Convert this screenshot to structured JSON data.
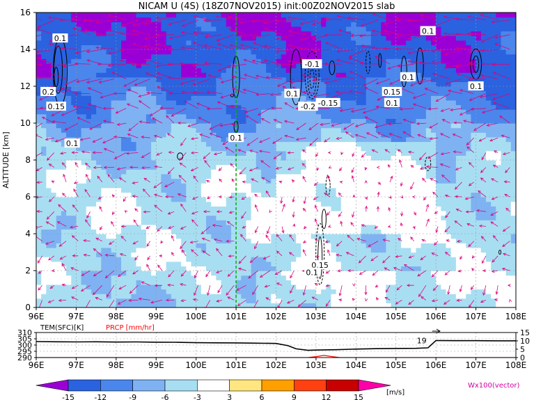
{
  "chart_data": [
    {
      "type": "heatmap",
      "title": "NICAM U (4S) (18Z07NOV2015) init:00Z02NOV2015 slab",
      "ylabel": "ALTITUDE [km]",
      "xlim": [
        96,
        108
      ],
      "ylim": [
        0,
        16
      ],
      "x_ticks": [
        "96E",
        "97E",
        "98E",
        "99E",
        "100E",
        "101E",
        "102E",
        "103E",
        "104E",
        "105E",
        "106E",
        "107E",
        "108E"
      ],
      "y_ticks": [
        "0",
        "2",
        "4",
        "6",
        "8",
        "10",
        "12",
        "14",
        "16"
      ],
      "grid": true,
      "marker_line_x": 101,
      "contour_labels": [
        {
          "text": "0.1",
          "x": 96.6,
          "y": 14.6
        },
        {
          "text": "0.2",
          "x": 96.3,
          "y": 11.7
        },
        {
          "text": "0.15",
          "x": 96.5,
          "y": 10.9
        },
        {
          "text": "0.1",
          "x": 96.9,
          "y": 8.9
        },
        {
          "text": "0.1",
          "x": 101.0,
          "y": 9.2
        },
        {
          "text": "-0.1",
          "x": 102.9,
          "y": 13.2
        },
        {
          "text": "0.1",
          "x": 102.4,
          "y": 11.6
        },
        {
          "text": "-0.2",
          "x": 102.8,
          "y": 10.9
        },
        {
          "text": "-0.15",
          "x": 103.3,
          "y": 11.1
        },
        {
          "text": "0.15",
          "x": 104.9,
          "y": 11.7
        },
        {
          "text": "0.1",
          "x": 104.9,
          "y": 11.1
        },
        {
          "text": "0.1",
          "x": 105.3,
          "y": 12.5
        },
        {
          "text": "0.1",
          "x": 105.8,
          "y": 15.0
        },
        {
          "text": "0.1",
          "x": 107.0,
          "y": 12.0
        },
        {
          "text": "0.15",
          "x": 103.1,
          "y": 2.3
        },
        {
          "text": "0.1",
          "x": 102.9,
          "y": 1.9
        }
      ]
    },
    {
      "type": "line",
      "xlim": [
        96,
        108
      ],
      "x_ticks": [
        "96E",
        "97E",
        "98E",
        "99E",
        "100E",
        "101E",
        "102E",
        "103E",
        "104E",
        "105E",
        "106E",
        "107E",
        "108E"
      ],
      "left_axis": {
        "label": "TEM(SFC)[K]",
        "ticks": [
          "290",
          "295",
          "300",
          "305",
          "310"
        ],
        "range": [
          290,
          310
        ]
      },
      "right_axis": {
        "label": "PRCP [mm/hr]",
        "ticks": [
          "0",
          "5",
          "10",
          "15"
        ],
        "range": [
          0,
          15
        ]
      },
      "series": [
        {
          "name": "TEM(SFC)[K]",
          "color": "#000000",
          "x": [
            96,
            96.5,
            97,
            97.5,
            98,
            98.5,
            99,
            99.5,
            100,
            100.5,
            101,
            101.5,
            102,
            102.3,
            102.5,
            102.8,
            103,
            103.5,
            104,
            104.5,
            105,
            105.5,
            105.8,
            106,
            106.5,
            107,
            107.5,
            108
          ],
          "y": [
            302.8,
            302.6,
            302.5,
            302.6,
            302.4,
            302.5,
            302.3,
            302.2,
            301.9,
            301.8,
            301.7,
            301.5,
            301.3,
            299.5,
            297.0,
            295.8,
            296.0,
            296.3,
            296.8,
            297.1,
            297.3,
            297.4,
            297.8,
            303.6,
            303.5,
            303.5,
            303.4,
            303.4
          ]
        },
        {
          "name": "PRCP [mm/hr]",
          "color": "#ff0000",
          "x": [
            96,
            102.8,
            103.0,
            103.2,
            103.4,
            103.6,
            108
          ],
          "y": [
            0,
            0,
            0.6,
            1.3,
            0.6,
            0,
            0
          ]
        }
      ],
      "annotation": {
        "text": "19",
        "x": 105.8,
        "y": 303.6
      }
    }
  ],
  "colorbar": {
    "ticks": [
      "-15",
      "-12",
      "-9",
      "-6",
      "-3",
      "3",
      "6",
      "9",
      "12",
      "15"
    ],
    "unit": "[m/s]",
    "colors": [
      "#9a00d6",
      "#2a62e0",
      "#4a86ec",
      "#7fb2f2",
      "#a8def2",
      "#ffffff",
      "#ffe680",
      "#ffa000",
      "#ff4010",
      "#c80000",
      "#ff00a8"
    ]
  },
  "vector_label": "Wx100(vector)"
}
